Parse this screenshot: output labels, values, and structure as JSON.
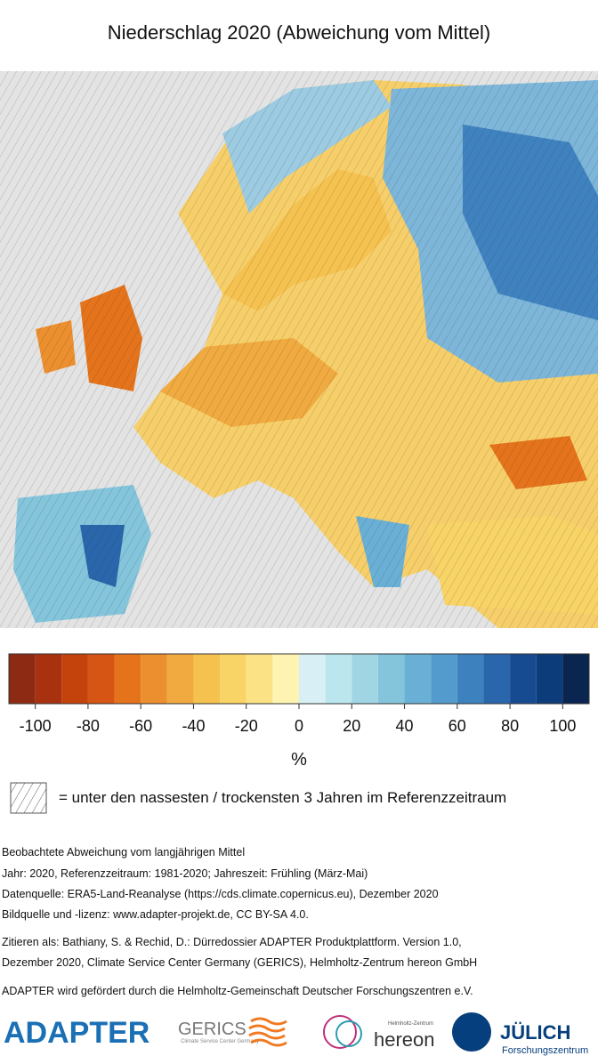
{
  "title": "Niederschlag 2020 (Abweichung vom Mittel)",
  "colorbar": {
    "range": [
      -110,
      110
    ],
    "ticks": [
      -100,
      -80,
      -60,
      -40,
      -20,
      0,
      20,
      40,
      60,
      80,
      100
    ],
    "unit": "%",
    "colors": [
      "#8c2a14",
      "#a8320f",
      "#c4420c",
      "#d65514",
      "#e4731c",
      "#ec8f2e",
      "#f0aa40",
      "#f5c250",
      "#f8d466",
      "#fae285",
      "#fef3b0",
      "#d8f0f5",
      "#bce6ee",
      "#a0d6e4",
      "#84c5dc",
      "#6ab0d6",
      "#539bcc",
      "#3d82bf",
      "#2a66ab",
      "#174b91",
      "#0d3c7a",
      "#0a2650"
    ]
  },
  "hatch_legend": "= unter den nassesten / trockensten 3 Jahren im Referenzzeitraum",
  "notes": [
    "Beobachtete Abweichung vom langjährigen Mittel",
    "Jahr: 2020, Referenzzeitraum: 1981-2020; Jahreszeit: Frühling (März-Mai)",
    "Datenquelle: ERA5-Land-Reanalyse (https://cds.climate.copernicus.eu), Dezember 2020",
    "Bildquelle und -lizenz: www.adapter-projekt.de, CC BY-SA 4.0."
  ],
  "citation": [
    "Zitieren als: Bathiany, S. & Rechid, D.: Dürredossier ADAPTER Produktplattform. Version 1.0,",
    "Dezember 2020, Climate Service Center Germany (GERICS), Helmholtz-Zentrum hereon GmbH"
  ],
  "funding": "ADAPTER wird gefördert durch die Helmholtz-Gemeinschaft Deutscher Forschungszentren e.V.",
  "logos": {
    "adapter": "ADAPTER",
    "gerics": "GERICS",
    "gerics_sub": "Climate Service Center Germany",
    "hereon_small": "Helmholtz-Zentrum",
    "hereon": "hereon",
    "julich": "JÜLICH",
    "julich_sub": "Forschungszentrum"
  }
}
